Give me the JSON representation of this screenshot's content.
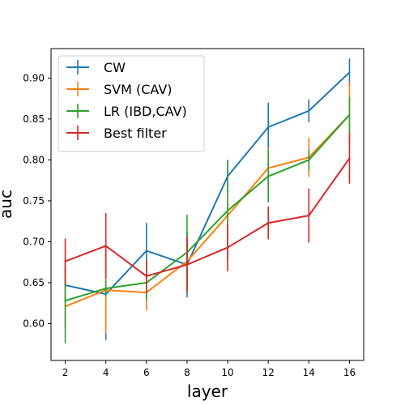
{
  "chart_data": {
    "type": "line",
    "xlabel": "layer",
    "ylabel": "auc",
    "x": [
      2,
      4,
      6,
      8,
      10,
      12,
      14,
      16
    ],
    "xticks": [
      "2",
      "4",
      "6",
      "8",
      "10",
      "12",
      "14",
      "16"
    ],
    "yticks": [
      "0.60",
      "0.65",
      "0.70",
      "0.75",
      "0.80",
      "0.85",
      "0.90"
    ],
    "xlim": [
      1.3,
      16.7
    ],
    "ylim": [
      0.555,
      0.936
    ],
    "legend_position": "upper-left",
    "grid": false,
    "series": [
      {
        "name": "CW",
        "color": "#1f77b4",
        "values": [
          0.647,
          0.636,
          0.689,
          0.672,
          0.78,
          0.84,
          0.86,
          0.907
        ],
        "errors": [
          0.022,
          0.056,
          0.034,
          0.04,
          0.02,
          0.03,
          0.014,
          0.017
        ]
      },
      {
        "name": "SVM (CAV)",
        "color": "#ff7f0e",
        "values": [
          0.621,
          0.641,
          0.638,
          0.676,
          0.732,
          0.79,
          0.803,
          0.855
        ],
        "errors": [
          0.027,
          0.053,
          0.022,
          0.03,
          0.02,
          0.025,
          0.024,
          0.04
        ]
      },
      {
        "name": "LR (IBD,CAV)",
        "color": "#2ca02c",
        "values": [
          0.628,
          0.643,
          0.65,
          0.687,
          0.738,
          0.78,
          0.8,
          0.855
        ],
        "errors": [
          0.052,
          0.01,
          0.022,
          0.046,
          0.06,
          0.032,
          0.013,
          0.022
        ]
      },
      {
        "name": "Best filter",
        "color": "#d62728",
        "values": [
          0.676,
          0.695,
          0.658,
          0.672,
          0.693,
          0.723,
          0.732,
          0.802
        ],
        "errors": [
          0.028,
          0.04,
          0.02,
          0.034,
          0.029,
          0.02,
          0.033,
          0.031
        ]
      }
    ]
  }
}
